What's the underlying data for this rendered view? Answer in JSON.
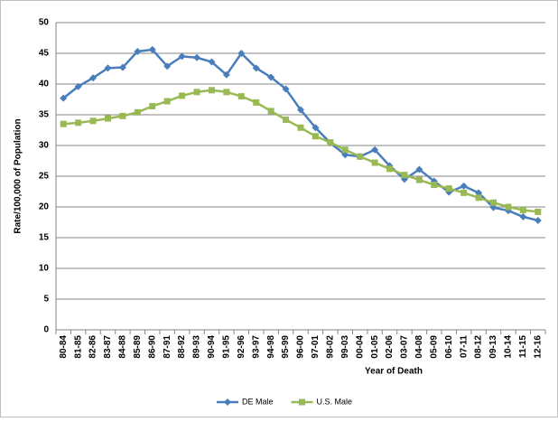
{
  "chart_data": {
    "type": "line",
    "x_label": "Year of Death",
    "y_label": "Rate/100,000 of Population",
    "categories": [
      "80-84",
      "81-85",
      "82-86",
      "83-87",
      "84-88",
      "85-89",
      "86-90",
      "87-91",
      "88-92",
      "89-93",
      "90-94",
      "91-95",
      "92-96",
      "93-97",
      "94-98",
      "95-99",
      "96-00",
      "97-01",
      "98-02",
      "99-03",
      "00-04",
      "01-05",
      "02-06",
      "03-07",
      "04-08",
      "05-09",
      "06-10",
      "07-11",
      "08-12",
      "09-13",
      "10-14",
      "11-15",
      "12-16"
    ],
    "series": [
      {
        "name": "DE Male",
        "color": "#4a7ebb",
        "marker": "diamond",
        "values": [
          37.7,
          39.6,
          41.0,
          42.6,
          42.7,
          45.3,
          45.6,
          42.9,
          44.5,
          44.3,
          43.6,
          41.5,
          45.0,
          42.6,
          41.1,
          39.2,
          35.8,
          32.9,
          30.4,
          28.5,
          28.2,
          29.3,
          26.7,
          24.5,
          26.1,
          24.2,
          22.4,
          23.4,
          22.3,
          19.9,
          19.4,
          18.4,
          17.8
        ]
      },
      {
        "name": "U.S. Male",
        "color": "#98b954",
        "marker": "square",
        "values": [
          33.5,
          33.7,
          34.0,
          34.4,
          34.8,
          35.4,
          36.4,
          37.2,
          38.1,
          38.7,
          39.0,
          38.7,
          38.0,
          37.0,
          35.6,
          34.2,
          32.9,
          31.5,
          30.5,
          29.3,
          28.2,
          27.2,
          26.2,
          25.2,
          24.4,
          23.6,
          23.0,
          22.3,
          21.5,
          20.7,
          20.0,
          19.5,
          19.2
        ]
      }
    ],
    "ylim": [
      0,
      50
    ],
    "yticks": [
      0,
      5,
      10,
      15,
      20,
      25,
      30,
      35,
      40,
      45,
      50
    ],
    "grid": true,
    "legend": "bottom"
  }
}
